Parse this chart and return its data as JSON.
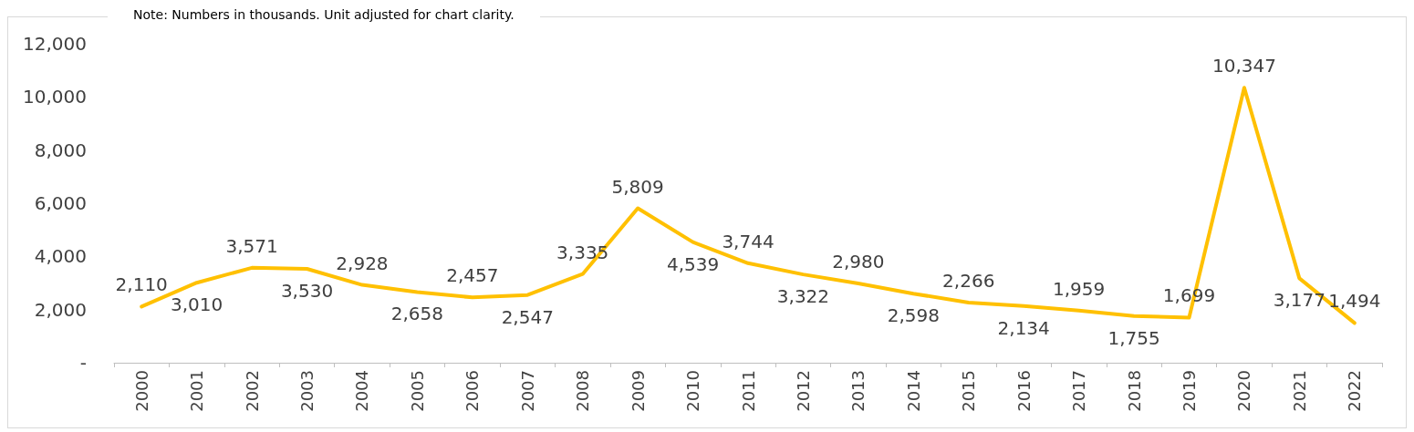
{
  "chart_data": {
    "type": "line",
    "annotations": [
      "Note: Numbers in thousands. Unit adjusted for chart clarity."
    ],
    "categories": [
      "2000",
      "2001",
      "2002",
      "2003",
      "2004",
      "2005",
      "2006",
      "2007",
      "2008",
      "2009",
      "2010",
      "2011",
      "2012",
      "2013",
      "2014",
      "2015",
      "2016",
      "2017",
      "2018",
      "2019",
      "2020",
      "2021",
      "2022"
    ],
    "series": [
      {
        "color": "#ffc000",
        "values": [
          2110,
          3010,
          3571,
          3530,
          2928,
          2658,
          2457,
          2547,
          3335,
          5809,
          4539,
          3744,
          3322,
          2980,
          2598,
          2266,
          2134,
          1959,
          1755,
          1699,
          10347,
          3177,
          1494
        ],
        "value_labels": [
          "2,110",
          "3,010",
          "3,571",
          "3,530",
          "2,928",
          "2,658",
          "2,457",
          "2,547",
          "3,335",
          "5,809",
          "4,539",
          "3,744",
          "3,322",
          "2,980",
          "2,598",
          "2,266",
          "2,134",
          "1,959",
          "1,755",
          "1,699",
          "10,347",
          "3,177",
          "1,494"
        ]
      }
    ],
    "ylim": [
      0,
      12000
    ],
    "yticks": [
      {
        "value": 0,
        "label": "-"
      },
      {
        "value": 2000,
        "label": "2,000"
      },
      {
        "value": 4000,
        "label": "4,000"
      },
      {
        "value": 6000,
        "label": "6,000"
      },
      {
        "value": 8000,
        "label": "8,000"
      },
      {
        "value": 10000,
        "label": "10,000"
      },
      {
        "value": 12000,
        "label": "12,000"
      }
    ],
    "grid": false,
    "marker": "none",
    "line_style": "solid"
  }
}
